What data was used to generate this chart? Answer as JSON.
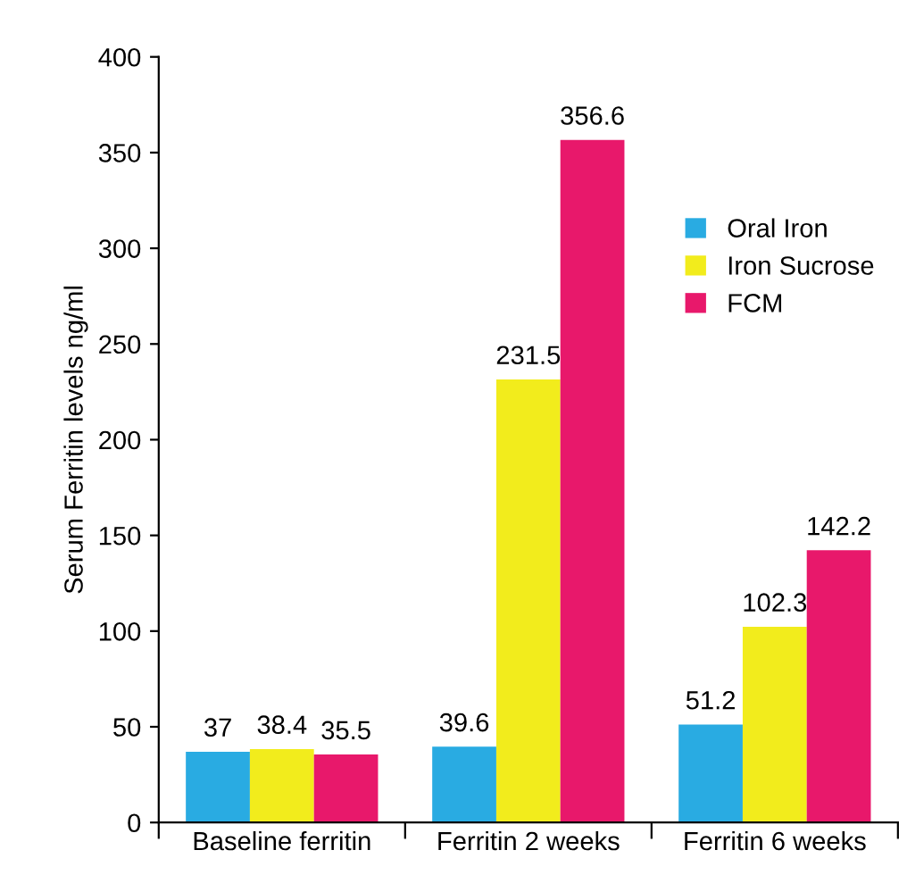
{
  "chart_data": {
    "type": "bar",
    "ylabel": "Serum Ferritin levels ng/ml",
    "categories": [
      "Baseline ferritin",
      "Ferritin 2 weeks",
      "Ferritin 6 weeks"
    ],
    "series": [
      {
        "name": "Oral Iron",
        "color": "#29abe2",
        "values": [
          37,
          39.6,
          51.2
        ]
      },
      {
        "name": "Iron Sucrose",
        "color": "#f2ec1c",
        "values": [
          38.4,
          231.5,
          102.3
        ]
      },
      {
        "name": "FCM",
        "color": "#e8186b",
        "values": [
          35.5,
          356.6,
          142.2
        ]
      }
    ],
    "ylim": [
      0,
      400
    ],
    "yticks": [
      0,
      50,
      100,
      150,
      200,
      250,
      300,
      350,
      400
    ],
    "grid": false,
    "legend": "top right",
    "data_labels": true
  }
}
